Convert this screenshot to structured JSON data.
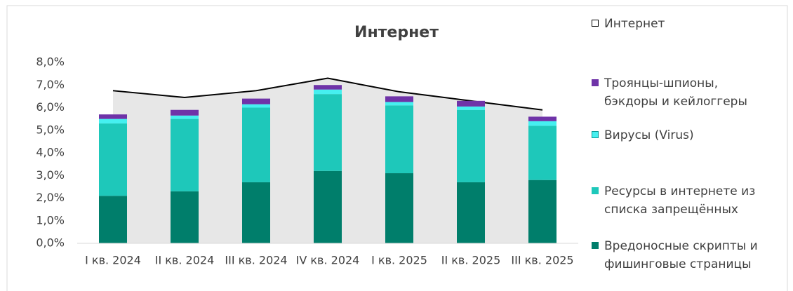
{
  "chart_data": {
    "type": "bar",
    "title": "Интернет",
    "categories": [
      "I кв. 2024",
      "II кв. 2024",
      "III кв. 2024",
      "IV кв. 2024",
      "I кв. 2025",
      "II кв. 2025",
      "III кв. 2025"
    ],
    "series": [
      {
        "name": "Интернет",
        "kind": "area",
        "color": "#e7e7e7",
        "line_color": "#000000",
        "values": [
          6.75,
          6.45,
          6.75,
          7.3,
          6.7,
          6.3,
          5.9
        ]
      },
      {
        "name": "Троянцы-шпионы, бэкдоры и кейлоггеры",
        "color": "#6f33a8",
        "values": [
          0.2,
          0.25,
          0.25,
          0.2,
          0.25,
          0.25,
          0.2
        ]
      },
      {
        "name": "Вирусы (Virus)",
        "color": "#45f0f0",
        "values": [
          0.2,
          0.15,
          0.15,
          0.2,
          0.15,
          0.15,
          0.2
        ]
      },
      {
        "name": "Ресурсы в интернете из списка запрещённых",
        "color": "#1ec8ba",
        "values": [
          3.2,
          3.2,
          3.3,
          3.4,
          3.0,
          3.2,
          2.4
        ]
      },
      {
        "name": "Вредоносные скрипты и фишинговые страницы",
        "color": "#007e6b",
        "values": [
          2.1,
          2.3,
          2.7,
          3.2,
          3.1,
          2.7,
          2.8
        ]
      }
    ],
    "ylim": [
      0,
      8
    ],
    "yticks": [
      {
        "value": 0,
        "label": "0,0%"
      },
      {
        "value": 1,
        "label": "1,0%"
      },
      {
        "value": 2,
        "label": "2,0%"
      },
      {
        "value": 3,
        "label": "3,0%"
      },
      {
        "value": 4,
        "label": "4,0%"
      },
      {
        "value": 5,
        "label": "5,0%"
      },
      {
        "value": 6,
        "label": "6,0%"
      },
      {
        "value": 7,
        "label": "7,0%"
      },
      {
        "value": 8,
        "label": "8,0%"
      }
    ],
    "grid": false,
    "legend": "right"
  }
}
